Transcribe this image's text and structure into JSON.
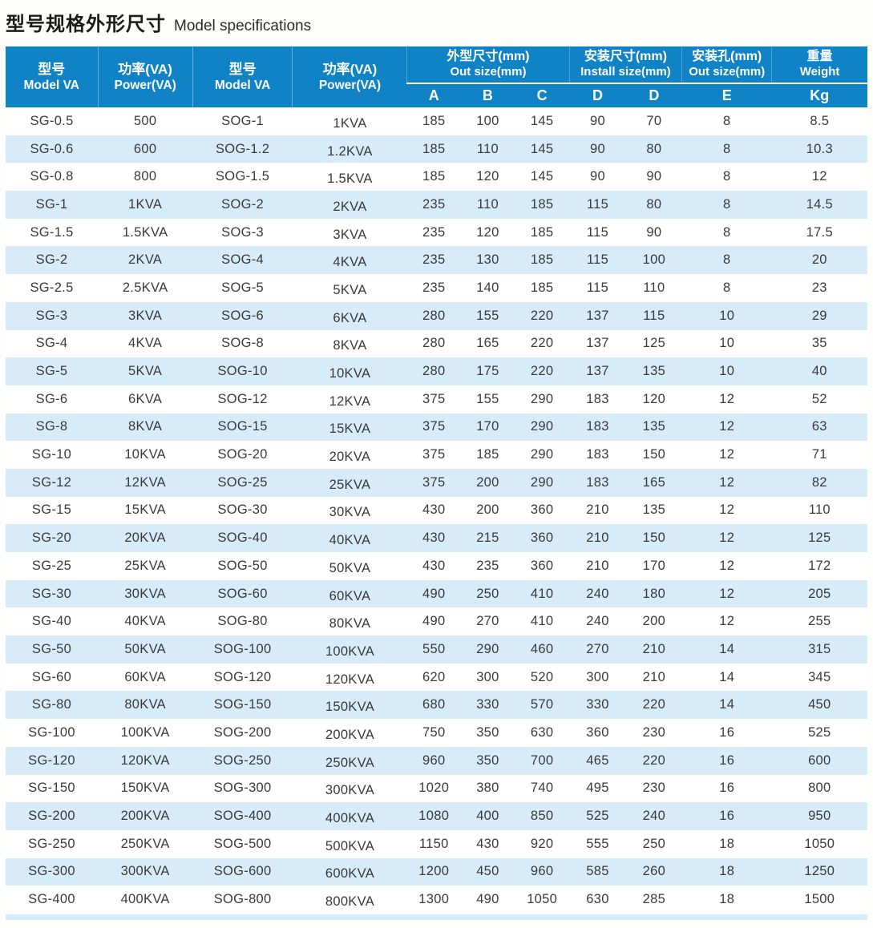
{
  "title": {
    "zh": "型号规格外形尺寸",
    "en": "Model specifications"
  },
  "colors": {
    "header_blue": "#1082c6",
    "row_alt_blue": "#d8ebf9",
    "body_text": "#3a3a3a"
  },
  "table": {
    "columns": [
      {
        "zh": "型号",
        "en": "Model VA"
      },
      {
        "zh": "功率(VA)",
        "en": "Power(VA)"
      },
      {
        "zh": "型号",
        "en": "Model VA"
      },
      {
        "zh": "功率(VA)",
        "en": "Power(VA)"
      }
    ],
    "groups": [
      {
        "zh": "外型尺寸(mm)",
        "en": "Out size(mm)",
        "span": 3
      },
      {
        "zh": "安装尺寸(mm)",
        "en": "Install size(mm)",
        "span": 2
      },
      {
        "zh": "安装孔(mm)",
        "en": "Out size(mm)",
        "span": 1
      },
      {
        "zh": "重量",
        "en": "Weight",
        "span": 1
      }
    ],
    "sub_labels": [
      "A",
      "B",
      "C",
      "D",
      "D",
      "E",
      "Kg"
    ],
    "rows": [
      [
        "SG-0.5",
        "500",
        "SOG-1",
        "1KVA",
        "185",
        "100",
        "145",
        "90",
        "70",
        "8",
        "8.5"
      ],
      [
        "SG-0.6",
        "600",
        "SOG-1.2",
        "1.2KVA",
        "185",
        "110",
        "145",
        "90",
        "80",
        "8",
        "10.3"
      ],
      [
        "SG-0.8",
        "800",
        "SOG-1.5",
        "1.5KVA",
        "185",
        "120",
        "145",
        "90",
        "90",
        "8",
        "12"
      ],
      [
        "SG-1",
        "1KVA",
        "SOG-2",
        "2KVA",
        "235",
        "110",
        "185",
        "115",
        "80",
        "8",
        "14.5"
      ],
      [
        "SG-1.5",
        "1.5KVA",
        "SOG-3",
        "3KVA",
        "235",
        "120",
        "185",
        "115",
        "90",
        "8",
        "17.5"
      ],
      [
        "SG-2",
        "2KVA",
        "SOG-4",
        "4KVA",
        "235",
        "130",
        "185",
        "115",
        "100",
        "8",
        "20"
      ],
      [
        "SG-2.5",
        "2.5KVA",
        "SOG-5",
        "5KVA",
        "235",
        "140",
        "185",
        "115",
        "110",
        "8",
        "23"
      ],
      [
        "SG-3",
        "3KVA",
        "SOG-6",
        "6KVA",
        "280",
        "155",
        "220",
        "137",
        "115",
        "10",
        "29"
      ],
      [
        "SG-4",
        "4KVA",
        "SOG-8",
        "8KVA",
        "280",
        "165",
        "220",
        "137",
        "125",
        "10",
        "35"
      ],
      [
        "SG-5",
        "5KVA",
        "SOG-10",
        "10KVA",
        "280",
        "175",
        "220",
        "137",
        "135",
        "10",
        "40"
      ],
      [
        "SG-6",
        "6KVA",
        "SOG-12",
        "12KVA",
        "375",
        "155",
        "290",
        "183",
        "120",
        "12",
        "52"
      ],
      [
        "SG-8",
        "8KVA",
        "SOG-15",
        "15KVA",
        "375",
        "170",
        "290",
        "183",
        "135",
        "12",
        "63"
      ],
      [
        "SG-10",
        "10KVA",
        "SOG-20",
        "20KVA",
        "375",
        "185",
        "290",
        "183",
        "150",
        "12",
        "71"
      ],
      [
        "SG-12",
        "12KVA",
        "SOG-25",
        "25KVA",
        "375",
        "200",
        "290",
        "183",
        "165",
        "12",
        "82"
      ],
      [
        "SG-15",
        "15KVA",
        "SOG-30",
        "30KVA",
        "430",
        "200",
        "360",
        "210",
        "135",
        "12",
        "110"
      ],
      [
        "SG-20",
        "20KVA",
        "SOG-40",
        "40KVA",
        "430",
        "215",
        "360",
        "210",
        "150",
        "12",
        "125"
      ],
      [
        "SG-25",
        "25KVA",
        "SOG-50",
        "50KVA",
        "430",
        "235",
        "360",
        "210",
        "170",
        "12",
        "172"
      ],
      [
        "SG-30",
        "30KVA",
        "SOG-60",
        "60KVA",
        "490",
        "250",
        "410",
        "240",
        "180",
        "12",
        "205"
      ],
      [
        "SG-40",
        "40KVA",
        "SOG-80",
        "80KVA",
        "490",
        "270",
        "410",
        "240",
        "200",
        "12",
        "255"
      ],
      [
        "SG-50",
        "50KVA",
        "SOG-100",
        "100KVA",
        "550",
        "290",
        "460",
        "270",
        "210",
        "14",
        "315"
      ],
      [
        "SG-60",
        "60KVA",
        "SOG-120",
        "120KVA",
        "620",
        "300",
        "520",
        "300",
        "210",
        "14",
        "345"
      ],
      [
        "SG-80",
        "80KVA",
        "SOG-150",
        "150KVA",
        "680",
        "330",
        "570",
        "330",
        "220",
        "14",
        "450"
      ],
      [
        "SG-100",
        "100KVA",
        "SOG-200",
        "200KVA",
        "750",
        "350",
        "630",
        "360",
        "230",
        "16",
        "525"
      ],
      [
        "SG-120",
        "120KVA",
        "SOG-250",
        "250KVA",
        "960",
        "350",
        "700",
        "465",
        "220",
        "16",
        "600"
      ],
      [
        "SG-150",
        "150KVA",
        "SOG-300",
        "300KVA",
        "1020",
        "380",
        "740",
        "495",
        "230",
        "16",
        "800"
      ],
      [
        "SG-200",
        "200KVA",
        "SOG-400",
        "400KVA",
        "1080",
        "400",
        "850",
        "525",
        "240",
        "16",
        "950"
      ],
      [
        "SG-250",
        "250KVA",
        "SOG-500",
        "500KVA",
        "1150",
        "430",
        "920",
        "555",
        "250",
        "18",
        "1050"
      ],
      [
        "SG-300",
        "300KVA",
        "SOG-600",
        "600KVA",
        "1200",
        "450",
        "960",
        "585",
        "260",
        "18",
        "1250"
      ],
      [
        "SG-400",
        "400KVA",
        "SOG-800",
        "800KVA",
        "1300",
        "490",
        "1050",
        "630",
        "285",
        "18",
        "1500"
      ]
    ]
  }
}
